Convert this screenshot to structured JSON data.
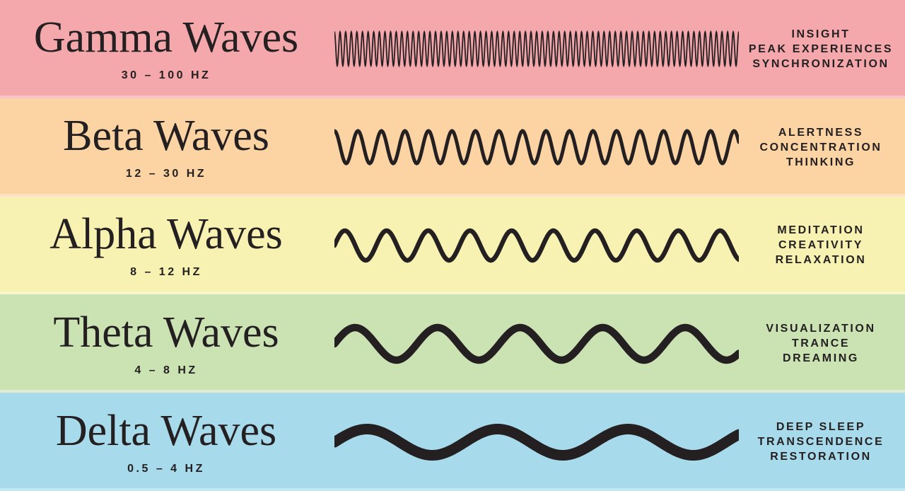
{
  "ink_color": "#242021",
  "rows": [
    {
      "id": "gamma",
      "title": "Gamma Waves",
      "freq": "30 – 100 HZ",
      "keywords": [
        "INSIGHT",
        "PEAK EXPERIENCES",
        "SYNCHRONIZATION"
      ],
      "bg": "#f5a8ac",
      "wave": {
        "cycles": 72,
        "amplitude": 24,
        "stroke": 1.8,
        "phase": 1.57
      }
    },
    {
      "id": "beta",
      "title": "Beta Waves",
      "freq": "12 – 30 HZ",
      "keywords": [
        "ALERTNESS",
        "CONCENTRATION",
        "THINKING"
      ],
      "bg": "#fcd4a4",
      "wave": {
        "cycles": 17.2,
        "amplitude": 23,
        "stroke": 5,
        "phase": 1.57
      }
    },
    {
      "id": "alpha",
      "title": "Alpha Waves",
      "freq": "8 – 12 HZ",
      "keywords": [
        "MEDITATION",
        "CREATIVITY",
        "RELAXATION"
      ],
      "bg": "#f7f1b2",
      "wave": {
        "cycles": 9.7,
        "amplitude": 21,
        "stroke": 6.5,
        "phase": 0
      }
    },
    {
      "id": "theta",
      "title": "Theta Waves",
      "freq": "4 – 8 HZ",
      "keywords": [
        "VISUALIZATION",
        "TRANCE",
        "DREAMING"
      ],
      "bg": "#cbe3b3",
      "wave": {
        "cycles": 4.9,
        "amplitude": 23,
        "stroke": 10.5,
        "phase": 0
      }
    },
    {
      "id": "delta",
      "title": "Delta Waves",
      "freq": "0.5 – 4 HZ",
      "keywords": [
        "DEEP SLEEP",
        "TRANSCENDENCE",
        "RESTORATION"
      ],
      "bg": "#a7daea",
      "wave": {
        "cycles": 3.1,
        "amplitude": 18.5,
        "stroke": 15,
        "phase": 0
      }
    }
  ]
}
